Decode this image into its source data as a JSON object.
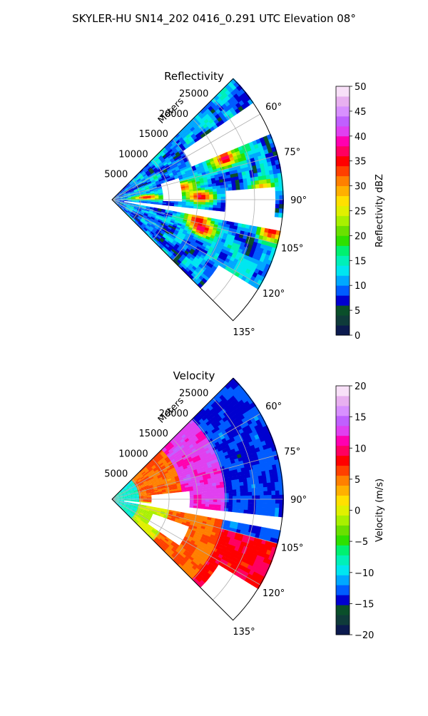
{
  "figure": {
    "suptitle": "SKYLER-HU  SN14_202  0416_0.291 UTC Elevation 08°"
  },
  "chart_data": [
    {
      "type": "heatmap",
      "subtype": "polar-sector-radar",
      "title": "Reflectivity",
      "radial_axis_label": "Meters",
      "radial_ticks": [
        "5000",
        "10000",
        "15000",
        "20000",
        "25000"
      ],
      "radial_tick_values": [
        5000,
        10000,
        15000,
        20000,
        25000
      ],
      "azimuth_ticks": [
        "60°",
        "75°",
        "90°",
        "105°",
        "120°",
        "135°"
      ],
      "azimuth_tick_values": [
        60,
        75,
        90,
        105,
        120,
        135
      ],
      "azimuth_range": [
        45,
        135
      ],
      "range_max": 30000,
      "grid": true,
      "colorbar": {
        "label": "Reflectivity dBZ",
        "range": [
          0,
          50
        ],
        "ticks": [
          "0",
          "5",
          "10",
          "15",
          "20",
          "25",
          "30",
          "35",
          "40",
          "45",
          "50"
        ],
        "tick_values": [
          0,
          5,
          10,
          15,
          20,
          25,
          30,
          35,
          40,
          45,
          50
        ],
        "colors": [
          "#0b1a4e",
          "#0f3b3a",
          "#0a4f2a",
          "#0000d0",
          "#005cff",
          "#00a8ff",
          "#00e6f0",
          "#00f0b8",
          "#00f070",
          "#2ee000",
          "#6ae000",
          "#a8f000",
          "#e0f000",
          "#ffe000",
          "#ffb000",
          "#ff8000",
          "#ff4000",
          "#ff0000",
          "#ff0060",
          "#ff00b0",
          "#e040f0",
          "#c060ff",
          "#d890ff",
          "#e8b0f0",
          "#f8e0f8"
        ]
      },
      "field_model": {
        "coverage": 0.74,
        "mean": 19,
        "spread": 7,
        "cores": [
          {
            "az": 70,
            "r": 21000,
            "value": 38
          },
          {
            "az": 80,
            "r": 12500,
            "value": 33
          },
          {
            "az": 86,
            "r": 6000,
            "value": 36
          },
          {
            "az": 88,
            "r": 15500,
            "value": 37
          },
          {
            "az": 103,
            "r": 15500,
            "value": 34
          },
          {
            "az": 108,
            "r": 16500,
            "value": 38
          },
          {
            "az": 101,
            "r": 28500,
            "value": 36
          },
          {
            "az": 86,
            "r": 26500,
            "value": 30
          }
        ],
        "gaps": [
          {
            "az_from": 72,
            "az_to": 92,
            "r_from": 9000,
            "r_to": 12500
          },
          {
            "az_from": 86,
            "az_to": 98,
            "r_from": 20000,
            "r_to": 28500
          },
          {
            "az_from": 96,
            "az_to": 100,
            "r_from": 2000,
            "r_to": 30000
          },
          {
            "az_from": 56,
            "az_to": 68,
            "r_from": 15000,
            "r_to": 30000
          },
          {
            "az_from": 122,
            "az_to": 135,
            "r_from": 22000,
            "r_to": 30000
          }
        ]
      }
    },
    {
      "type": "heatmap",
      "subtype": "polar-sector-radar",
      "title": "Velocity",
      "radial_axis_label": "Meters",
      "radial_ticks": [
        "5000",
        "10000",
        "15000",
        "20000",
        "25000"
      ],
      "radial_tick_values": [
        5000,
        10000,
        15000,
        20000,
        25000
      ],
      "azimuth_ticks": [
        "60°",
        "75°",
        "90°",
        "105°",
        "120°",
        "135°"
      ],
      "azimuth_tick_values": [
        60,
        75,
        90,
        105,
        120,
        135
      ],
      "azimuth_range": [
        45,
        135
      ],
      "range_max": 30000,
      "grid": true,
      "colorbar": {
        "label": "Velocity (m/s)",
        "range": [
          -20,
          20
        ],
        "ticks": [
          "−20",
          "−15",
          "−10",
          "−5",
          "0",
          "5",
          "10",
          "15",
          "20"
        ],
        "tick_values": [
          -20,
          -15,
          -10,
          -5,
          0,
          5,
          10,
          15,
          20
        ],
        "colors": [
          "#0b1a4e",
          "#0f3b3a",
          "#0a4f2a",
          "#0000d0",
          "#005cff",
          "#00a8ff",
          "#00e6f0",
          "#00f0b8",
          "#00f070",
          "#2ee000",
          "#6ae000",
          "#a8f000",
          "#e0f000",
          "#ffe000",
          "#ffb000",
          "#ff8000",
          "#ff4000",
          "#ff0000",
          "#ff0060",
          "#ff00b0",
          "#e040f0",
          "#c060ff",
          "#d890ff",
          "#e8b0f0",
          "#f8e0f8"
        ]
      },
      "field_model": {
        "coverage": 0.82,
        "regimes": [
          {
            "r_from": 0,
            "r_to": 4500,
            "az_from": 45,
            "az_to": 135,
            "value": -6
          },
          {
            "r_from": 4500,
            "r_to": 10000,
            "az_from": 95,
            "az_to": 135,
            "value": 2
          },
          {
            "r_from": 10000,
            "r_to": 20000,
            "az_from": 100,
            "az_to": 135,
            "value": 8
          },
          {
            "r_from": 20000,
            "r_to": 30000,
            "az_from": 105,
            "az_to": 135,
            "value": 11
          },
          {
            "r_from": 4500,
            "r_to": 12000,
            "az_from": 45,
            "az_to": 95,
            "value": 8
          },
          {
            "r_from": 12000,
            "r_to": 20000,
            "az_from": 45,
            "az_to": 100,
            "value": 15
          },
          {
            "r_from": 20000,
            "r_to": 30000,
            "az_from": 45,
            "az_to": 105,
            "value": -11
          }
        ],
        "gaps": [
          {
            "az_from": 84,
            "az_to": 100,
            "r_from": 7000,
            "r_to": 13500
          },
          {
            "az_from": 96,
            "az_to": 100,
            "r_from": 2000,
            "r_to": 30000
          },
          {
            "az_from": 110,
            "az_to": 124,
            "r_from": 7500,
            "r_to": 14000
          },
          {
            "az_from": 122,
            "az_to": 135,
            "r_from": 22000,
            "r_to": 30000
          }
        ]
      }
    }
  ]
}
